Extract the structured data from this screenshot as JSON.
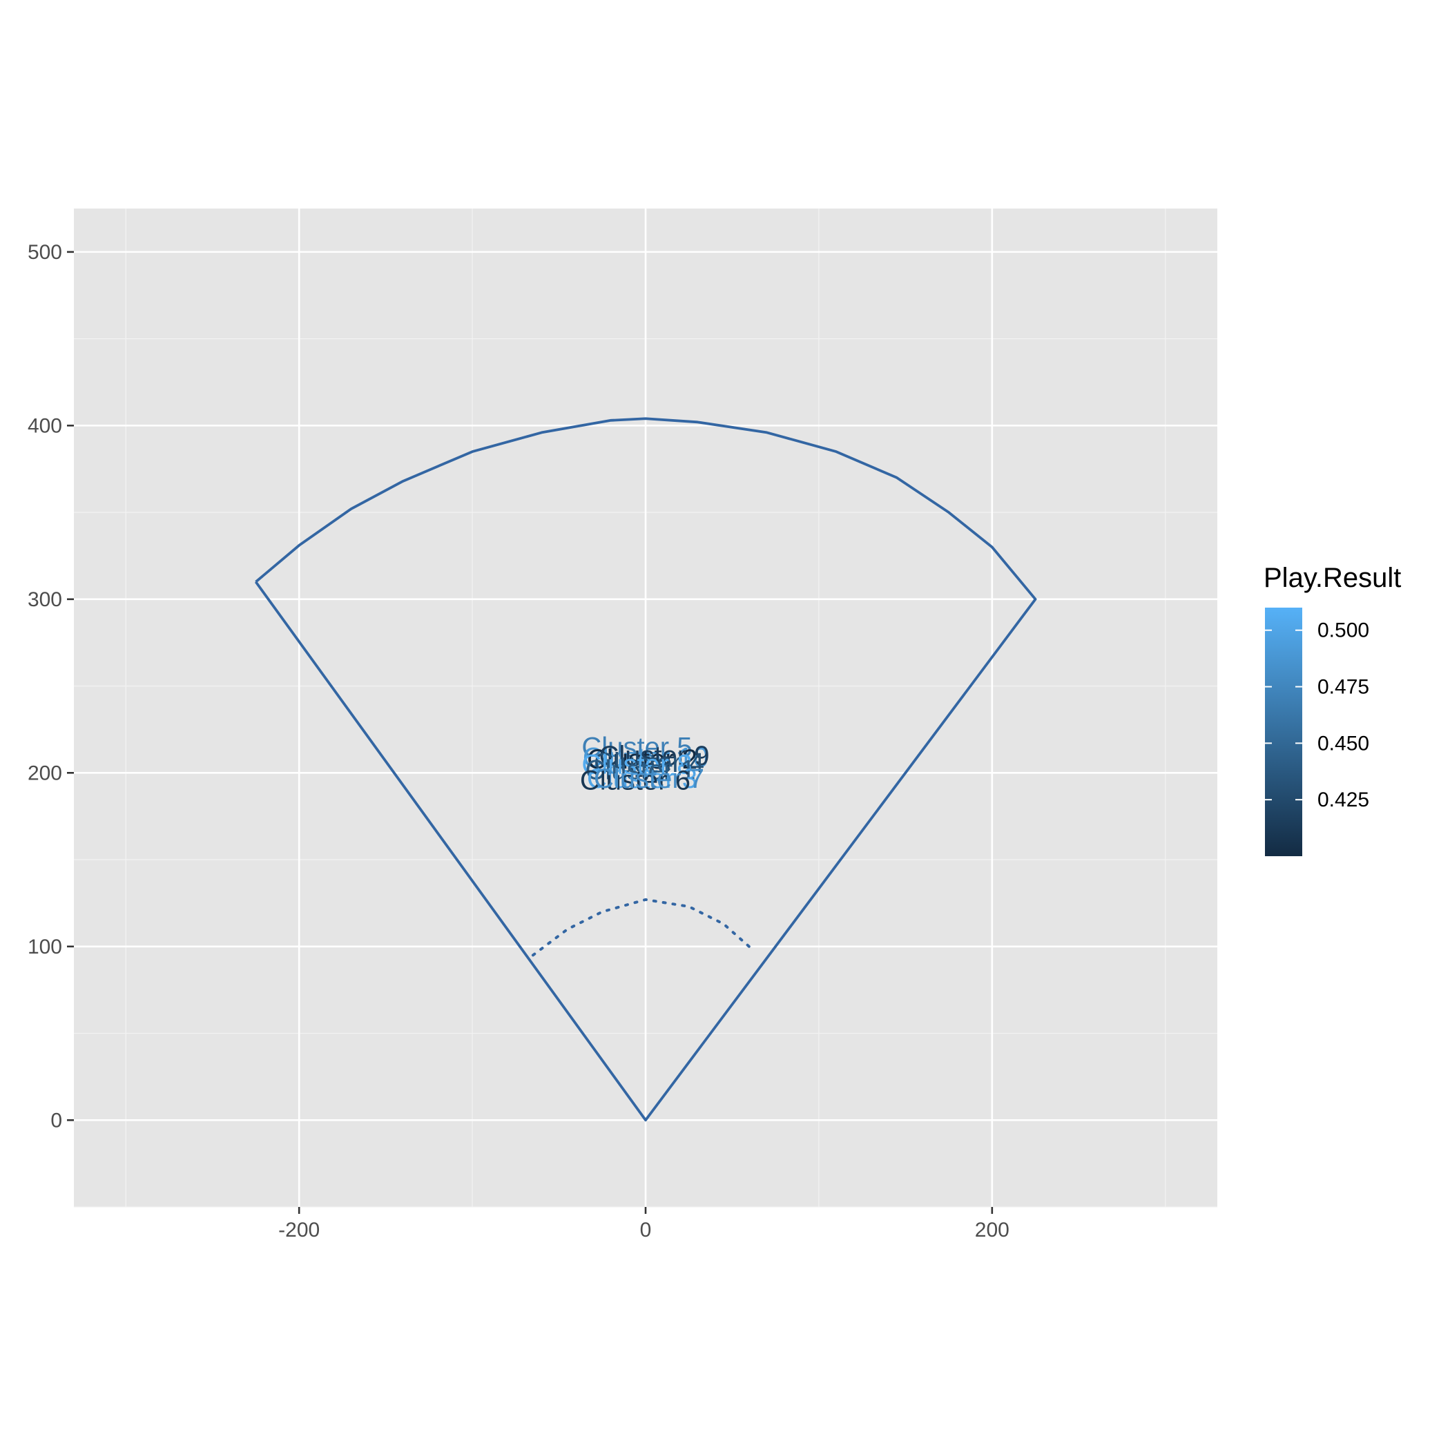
{
  "chart_data": {
    "type": "scatter",
    "title": "",
    "xlabel": "",
    "ylabel": "",
    "xlim": [
      -330,
      330
    ],
    "ylim": [
      -50,
      525
    ],
    "x_ticks": [
      -200,
      0,
      200
    ],
    "x_tick_labels": [
      "-200",
      "0",
      "200"
    ],
    "y_ticks": [
      0,
      100,
      200,
      300,
      400,
      500
    ],
    "y_tick_labels": [
      "0",
      "100",
      "200",
      "300",
      "400",
      "500"
    ],
    "grid": true,
    "panel_background": "#e5e5e5",
    "field_color": "#3366a3",
    "field_outline": [
      [
        -225,
        310
      ],
      [
        -200,
        331
      ],
      [
        -170,
        352
      ],
      [
        -140,
        368
      ],
      [
        -100,
        385
      ],
      [
        -60,
        396
      ],
      [
        -20,
        403
      ],
      [
        0,
        404
      ],
      [
        30,
        402
      ],
      [
        70,
        396
      ],
      [
        110,
        385
      ],
      [
        145,
        370
      ],
      [
        175,
        350
      ],
      [
        200,
        330
      ],
      [
        225,
        300
      ],
      [
        0,
        0
      ],
      [
        -225,
        310
      ]
    ],
    "infield_arc": [
      [
        -65,
        95
      ],
      [
        -45,
        110
      ],
      [
        -25,
        120
      ],
      [
        0,
        127
      ],
      [
        25,
        123
      ],
      [
        45,
        113
      ],
      [
        62,
        98
      ]
    ],
    "points": [
      {
        "label": "Cluster 5",
        "x": -5,
        "y": 215,
        "value": 0.47
      },
      {
        "label": "Cluster 10",
        "x": 0,
        "y": 209,
        "value": 0.49
      },
      {
        "label": "Cluster 2",
        "x": -2,
        "y": 208,
        "value": 0.4
      },
      {
        "label": "Cluster 9",
        "x": 5,
        "y": 210,
        "value": 0.415
      },
      {
        "label": "Cluster 4",
        "x": 2,
        "y": 206,
        "value": 0.43
      },
      {
        "label": "Cluster 8",
        "x": -5,
        "y": 205,
        "value": 0.505
      },
      {
        "label": "Cluster 1",
        "x": -3,
        "y": 202,
        "value": 0.44
      },
      {
        "label": "Cluster 3",
        "x": -2,
        "y": 197,
        "value": 0.5
      },
      {
        "label": "Cluster 6",
        "x": -6,
        "y": 196,
        "value": 0.41
      },
      {
        "label": "Cluster 7",
        "x": 2,
        "y": 197,
        "value": 0.48
      }
    ],
    "legend": {
      "title": "Play.Result",
      "position": "right",
      "min": 0.4,
      "max": 0.51,
      "breaks": [
        0.5,
        0.475,
        0.45,
        0.425
      ],
      "break_labels": [
        "0.500",
        "0.475",
        "0.450",
        "0.425"
      ],
      "color_low": "#132b43",
      "color_high": "#56b1f7"
    }
  }
}
